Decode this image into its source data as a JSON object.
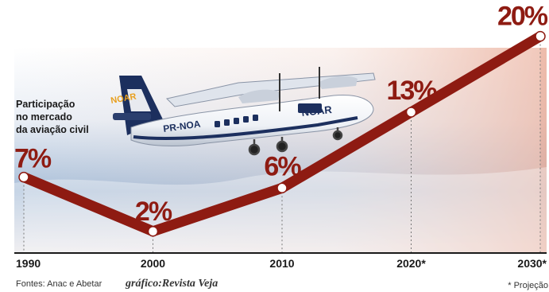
{
  "chart_data": {
    "type": "line",
    "title": "",
    "side_label": [
      "Participação",
      "no mercado",
      "da aviação civil"
    ],
    "categories": [
      "1990",
      "2000",
      "2010",
      "2020*",
      "2030*"
    ],
    "values": [
      7,
      2,
      6,
      13,
      20
    ],
    "value_labels": [
      "7%",
      "2%",
      "6%",
      "13%",
      "20%"
    ],
    "ylim": [
      0,
      21
    ],
    "grid": false,
    "legend": "none",
    "line_color": "#8e1b12"
  },
  "footer": {
    "sources": "Fontes: Anac e Abetar",
    "credit": "gráfico:Revista Veja",
    "note": "* Projeção"
  },
  "aircraft": {
    "registration": "PR-NOA",
    "logo_text": "NOAR"
  }
}
